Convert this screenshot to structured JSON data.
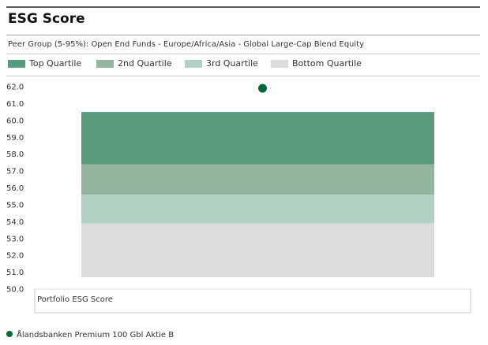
{
  "header": {
    "title": "ESG Score",
    "subtitle": "Peer Group (5-95%): Open End Funds - Europe/Africa/Asia - Global Large-Cap Blend Equity"
  },
  "legend": [
    {
      "label": "Top Quartile",
      "color": "#5a9a7f"
    },
    {
      "label": "2nd Quartile",
      "color": "#93b5a0"
    },
    {
      "label": "3rd Quartile",
      "color": "#b0d1c4"
    },
    {
      "label": "Bottom Quartile",
      "color": "#dcdcdc"
    }
  ],
  "footer": {
    "fund_name": "Ålandsbanken Premium 100 Gbl Aktie B",
    "dot_color": "#006b3a"
  },
  "chart_data": {
    "type": "bar",
    "title": "ESG Score",
    "subtitle": "Peer Group (5-95%): Open End Funds - Europe/Africa/Asia - Global Large-Cap Blend Equity",
    "xlabel": "Portfolio ESG Score",
    "ylabel": "",
    "ylim": [
      50.0,
      62.0
    ],
    "yticks": [
      "50.0",
      "51.0",
      "52.0",
      "53.0",
      "54.0",
      "55.0",
      "56.0",
      "57.0",
      "58.0",
      "59.0",
      "60.0",
      "61.0",
      "62.0"
    ],
    "categories": [
      "Portfolio ESG Score"
    ],
    "grid": false,
    "legend_position": "top",
    "quartile_bands": [
      {
        "name": "Top Quartile",
        "from": 57.4,
        "to": 60.5,
        "color": "#5a9a7f"
      },
      {
        "name": "2nd Quartile",
        "from": 55.6,
        "to": 57.4,
        "color": "#93b5a0"
      },
      {
        "name": "3rd Quartile",
        "from": 53.9,
        "to": 55.6,
        "color": "#b0d1c4"
      },
      {
        "name": "Bottom Quartile",
        "from": 50.7,
        "to": 53.9,
        "color": "#dcdcdc"
      }
    ],
    "points": [
      {
        "name": "Ålandsbanken Premium 100 Gbl Aktie B",
        "value": 61.9,
        "color": "#006b3a"
      }
    ]
  }
}
